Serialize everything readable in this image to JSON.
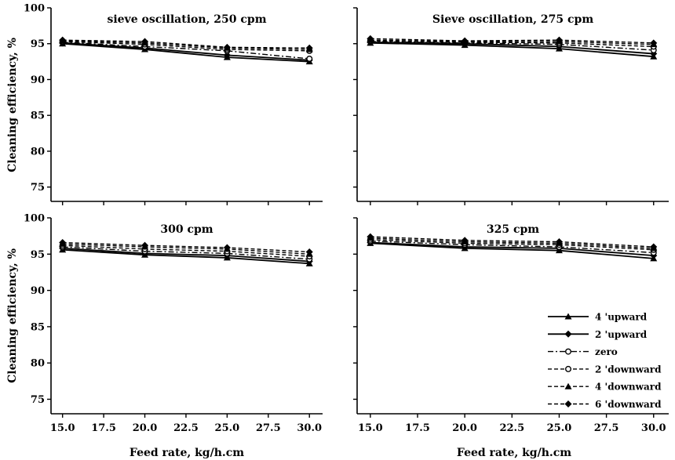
{
  "chart_data": [
    {
      "type": "line",
      "title": "sieve oscillation, 250 cpm",
      "x": [
        15,
        20,
        25,
        30
      ],
      "ylim": [
        73,
        100
      ],
      "series": [
        {
          "name": "4 'upward",
          "values": [
            95.0,
            94.2,
            93.1,
            92.5
          ]
        },
        {
          "name": "2 'upward",
          "values": [
            95.1,
            94.4,
            93.4,
            92.7
          ]
        },
        {
          "name": "zero",
          "values": [
            95.2,
            94.6,
            94.0,
            92.9
          ]
        },
        {
          "name": "2 'downward",
          "values": [
            95.3,
            94.9,
            94.2,
            94.0
          ]
        },
        {
          "name": "4 'downward",
          "values": [
            95.4,
            95.1,
            94.4,
            94.2
          ]
        },
        {
          "name": "6 'downward",
          "values": [
            95.5,
            95.3,
            94.5,
            94.4
          ]
        }
      ]
    },
    {
      "type": "line",
      "title": "Sieve oscillation, 275 cpm",
      "x": [
        15,
        20,
        25,
        30
      ],
      "ylim": [
        73,
        100
      ],
      "series": [
        {
          "name": "4 'upward",
          "values": [
            95.1,
            94.8,
            94.3,
            93.2
          ]
        },
        {
          "name": "2 'upward",
          "values": [
            95.2,
            95.0,
            94.6,
            93.6
          ]
        },
        {
          "name": "zero",
          "values": [
            95.3,
            95.1,
            94.9,
            94.1
          ]
        },
        {
          "name": "2 'downward",
          "values": [
            95.4,
            95.2,
            95.1,
            94.6
          ]
        },
        {
          "name": "4 'downward",
          "values": [
            95.5,
            95.3,
            95.3,
            94.9
          ]
        },
        {
          "name": "6 'downward",
          "values": [
            95.7,
            95.4,
            95.5,
            95.1
          ]
        }
      ]
    },
    {
      "type": "line",
      "title": "300 cpm",
      "x": [
        15,
        20,
        25,
        30
      ],
      "ylim": [
        73,
        100
      ],
      "series": [
        {
          "name": "4 'upward",
          "values": [
            95.6,
            94.9,
            94.5,
            93.7
          ]
        },
        {
          "name": "2 'upward",
          "values": [
            95.8,
            95.1,
            94.8,
            94.0
          ]
        },
        {
          "name": "zero",
          "values": [
            96.0,
            95.4,
            95.1,
            94.3
          ]
        },
        {
          "name": "2 'downward",
          "values": [
            96.2,
            95.7,
            95.4,
            94.7
          ]
        },
        {
          "name": "4 'downward",
          "values": [
            96.4,
            96.0,
            95.7,
            95.0
          ]
        },
        {
          "name": "6 'downward",
          "values": [
            96.6,
            96.2,
            95.9,
            95.3
          ]
        }
      ]
    },
    {
      "type": "line",
      "title": "325 cpm",
      "x": [
        15,
        20,
        25,
        30
      ],
      "ylim": [
        73,
        100
      ],
      "series": [
        {
          "name": "4 'upward",
          "values": [
            96.5,
            95.8,
            95.5,
            94.4
          ]
        },
        {
          "name": "2 'upward",
          "values": [
            96.6,
            96.0,
            95.8,
            94.8
          ]
        },
        {
          "name": "zero",
          "values": [
            96.8,
            96.3,
            96.0,
            95.2
          ]
        },
        {
          "name": "2 'downward",
          "values": [
            97.0,
            96.5,
            96.3,
            95.6
          ]
        },
        {
          "name": "4 'downward",
          "values": [
            97.2,
            96.7,
            96.5,
            95.8
          ]
        },
        {
          "name": "6 'downward",
          "values": [
            97.4,
            96.9,
            96.7,
            96.0
          ]
        }
      ]
    }
  ],
  "axes": {
    "x_ticks": [
      "15.0",
      "17.5",
      "20.0",
      "22.5",
      "25.0",
      "27.5",
      "30.0"
    ],
    "x_tick_values": [
      15,
      17.5,
      20,
      22.5,
      25,
      27.5,
      30
    ],
    "y_ticks": [
      "75",
      "80",
      "85",
      "90",
      "95",
      "100"
    ],
    "y_tick_values": [
      75,
      80,
      85,
      90,
      95,
      100
    ],
    "xlabel": "Feed rate, kg/h.cm",
    "ylabel": "Cleaning efficiency, %",
    "xlim": [
      14.3,
      30.8
    ],
    "ylim": [
      73,
      100
    ]
  },
  "legend": {
    "placement": "bottom-right of lower-right panel",
    "entries": [
      {
        "name": "4 'upward",
        "dash": "solid",
        "marker": "triangle"
      },
      {
        "name": "2 'upward",
        "dash": "solid",
        "marker": "diamond"
      },
      {
        "name": "zero",
        "dash": "dashdot",
        "marker": "circle"
      },
      {
        "name": "2 'downward",
        "dash": "dashed",
        "marker": "circle"
      },
      {
        "name": "4 'downward",
        "dash": "dashed",
        "marker": "triangle"
      },
      {
        "name": "6 'downward",
        "dash": "dashed",
        "marker": "diamond"
      }
    ]
  },
  "colors": {
    "ink": "#000000",
    "background": "#ffffff"
  }
}
